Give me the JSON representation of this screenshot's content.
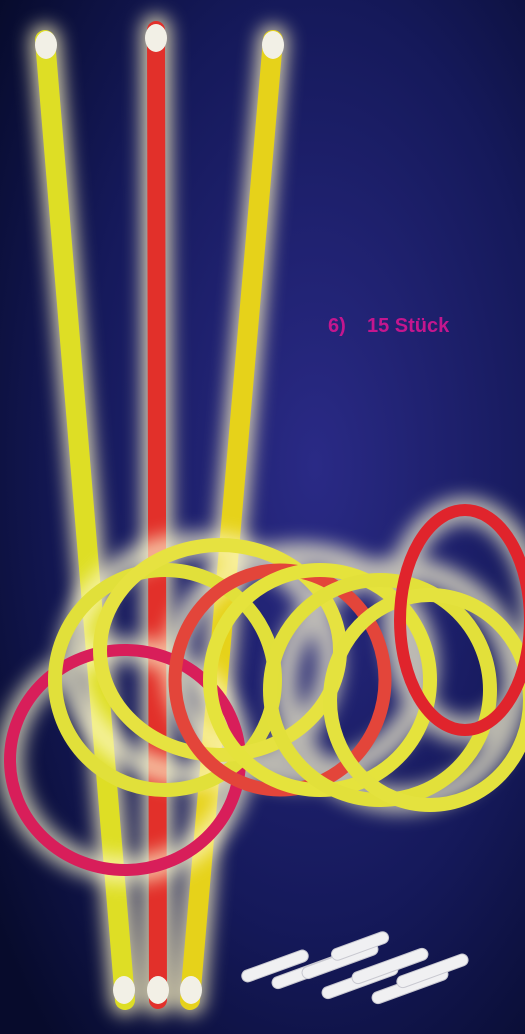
{
  "caption": {
    "number": "6)",
    "text": "15 Stück"
  }
}
